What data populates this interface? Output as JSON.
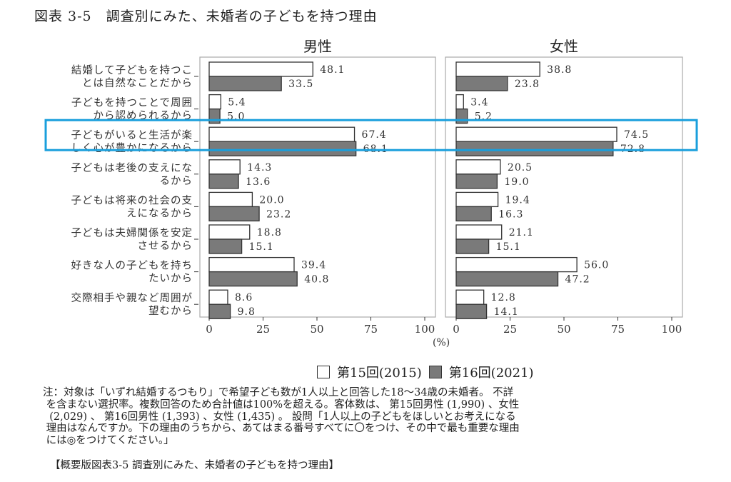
{
  "title": "図表 3-5　調査別にみた、未婚者の子どもを持つ理由",
  "chart_data": {
    "type": "bar",
    "orientation": "horizontal",
    "title": "図表 3-5　調査別にみた、未婚者の子どもを持つ理由",
    "panels": [
      {
        "name": "男性",
        "xlim": [
          0,
          100
        ],
        "xticks": [
          0,
          25,
          50,
          75,
          100
        ],
        "series": [
          {
            "name": "第15回(2015)",
            "color": "#ffffff",
            "values": [
              48.1,
              5.4,
              67.4,
              14.3,
              20.0,
              18.8,
              39.4,
              8.6
            ],
            "labels": [
              "48.1",
              "5.4",
              "67.4",
              "14.3",
              "20.0",
              "18.8",
              "39.4",
              "8.6"
            ]
          },
          {
            "name": "第16回(2021)",
            "color": "#7a7a7a",
            "values": [
              33.5,
              5.0,
              68.1,
              13.6,
              23.2,
              15.1,
              40.8,
              9.8
            ],
            "labels": [
              "33.5",
              "5.0",
              "68.1",
              "13.6",
              "23.2",
              "15.1",
              "40.8",
              "9.8"
            ]
          }
        ]
      },
      {
        "name": "女性",
        "xlim": [
          0,
          100
        ],
        "xticks": [
          0,
          25,
          50,
          75,
          100
        ],
        "series": [
          {
            "name": "第15回(2015)",
            "color": "#ffffff",
            "values": [
              38.8,
              3.4,
              74.5,
              20.5,
              19.4,
              21.1,
              56.0,
              12.8
            ],
            "labels": [
              "38.8",
              "3.4",
              "74.5",
              "20.5",
              "19.4",
              "21.1",
              "56.0",
              "12.8"
            ]
          },
          {
            "name": "第16回(2021)",
            "color": "#7a7a7a",
            "values": [
              23.8,
              5.2,
              72.8,
              19.0,
              16.3,
              15.1,
              47.2,
              14.1
            ],
            "labels": [
              "23.8",
              "5.2",
              "72.8",
              "19.0",
              "16.3",
              "15.1",
              "47.2",
              "14.1"
            ]
          }
        ]
      }
    ],
    "categories": [
      [
        "結婚して子どもを持つこ",
        "とは自然なことだから"
      ],
      [
        "子どもを持つことで周囲",
        "から認められるから"
      ],
      [
        "子どもがいると生活が楽",
        "しく心が豊かになるから"
      ],
      [
        "子どもは老後の支えにな",
        "るから"
      ],
      [
        "子どもは将来の社会の支",
        "えになるから"
      ],
      [
        "子どもは夫婦関係を安定",
        "させるから"
      ],
      [
        "好きな人の子どもを持ち",
        "たいから"
      ],
      [
        "交際相手や親など周囲が",
        "望むから"
      ]
    ],
    "highlighted_category_index": 2,
    "highlight_color": "#1a9fdc",
    "xlabel": "(%)",
    "legend": {
      "position": "bottom",
      "entries": [
        "第15回(2015)",
        "第16回(2021)"
      ]
    }
  },
  "legend": {
    "items": [
      {
        "label": "第15回(2015)",
        "color": "#ffffff"
      },
      {
        "label": "第16回(2021)",
        "color": "#7a7a7a"
      }
    ]
  },
  "notes": "注：対象は「いずれ結婚するつもり」で希望子ども数が1人以上と回答した18～34歳の未婚者。 不詳\n を含まない選択率。複数回答のため合計値は100%を超える。客体数は、 第15回男性 (1,990) 、女性\n  (2,029) 、 第16回男性 (1,393) 、女性 (1,435) 。 設問「1人以上の子どもをほしいとお考えになる\n 理由はなんですか。下の理由のうちから、あてはまる番号すべてに〇をつけ、その中で最も重要な理由\n には◎をつけてください。」",
  "caption": "【概要版図表3-5 調査別にみた、未婚者の子どもを持つ理由】"
}
